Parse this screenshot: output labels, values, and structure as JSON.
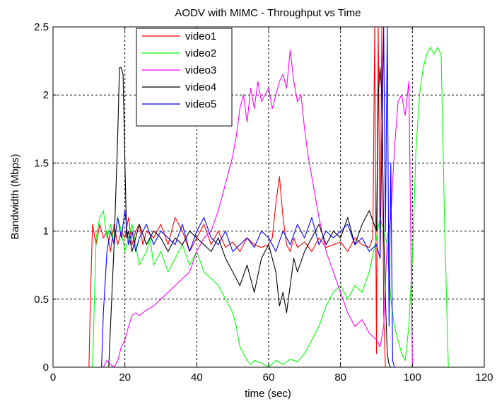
{
  "chart_data": {
    "type": "line",
    "title": "AODV with MIMC - Throughput vs Time",
    "xlabel": "time (sec)",
    "ylabel": "Bandwidth (Mbps)",
    "xlim": [
      0,
      120
    ],
    "ylim": [
      0,
      2.5
    ],
    "xticks": [
      "0",
      "20",
      "40",
      "60",
      "80",
      "100",
      "120"
    ],
    "yticks": [
      "0",
      "0.5",
      "1",
      "1.5",
      "2",
      "2.5"
    ],
    "grid": true,
    "legend_position": "top-left",
    "series": [
      {
        "name": "video1",
        "color": "#ff0000",
        "x": [
          0,
          10,
          10.5,
          11,
          12,
          13,
          14,
          15,
          16,
          17,
          18,
          19,
          20,
          21,
          22,
          23,
          24,
          25,
          26,
          28,
          30,
          32,
          34,
          36,
          38,
          40,
          42,
          44,
          46,
          48,
          50,
          52,
          54,
          56,
          58,
          60,
          61,
          62,
          63,
          64,
          65,
          66,
          67,
          68,
          70,
          72,
          74,
          76,
          78,
          80,
          82,
          84,
          86,
          88,
          89,
          89.5,
          90,
          90.5,
          91,
          91.5,
          92,
          92.5,
          93
        ],
        "y": [
          0,
          0,
          0.6,
          1.05,
          0.9,
          1.05,
          0.95,
          1.0,
          0.85,
          1.05,
          0.9,
          1.0,
          0.95,
          1.1,
          0.9,
          1.0,
          1.05,
          0.9,
          1.0,
          0.95,
          1.05,
          0.9,
          1.1,
          1.0,
          0.85,
          0.95,
          1.05,
          0.9,
          1.0,
          0.88,
          0.92,
          0.85,
          0.95,
          0.9,
          0.88,
          0.9,
          0.95,
          1.2,
          1.4,
          1.1,
          0.9,
          0.85,
          0.95,
          0.88,
          0.92,
          0.85,
          0.95,
          0.88,
          0.9,
          0.92,
          0.85,
          0.95,
          0.9,
          0.88,
          0.95,
          2.5,
          0.1,
          2.5,
          0.8,
          2.5,
          0.4,
          0.0,
          0
        ]
      },
      {
        "name": "video2",
        "color": "#00ff00",
        "x": [
          0,
          10,
          11,
          12,
          13,
          14,
          15,
          16,
          17,
          18,
          19,
          20,
          21,
          22,
          23,
          24,
          25,
          26,
          27,
          28,
          30,
          32,
          34,
          36,
          38,
          40,
          42,
          44,
          46,
          48,
          50,
          51,
          52,
          53,
          54,
          55,
          56,
          58,
          60,
          62,
          64,
          66,
          68,
          70,
          72,
          74,
          76,
          78,
          80,
          82,
          84,
          86,
          88,
          90,
          91,
          92,
          93,
          94,
          95,
          96,
          97,
          98,
          99,
          100,
          101,
          102,
          103,
          104,
          105,
          106,
          107,
          108,
          109,
          110,
          120
        ],
        "y": [
          0,
          0,
          0.0,
          0.95,
          1.1,
          1.15,
          0.95,
          1.05,
          0.9,
          1.1,
          1.0,
          0.85,
          0.95,
          1.05,
          0.9,
          0.75,
          0.8,
          0.85,
          0.95,
          0.75,
          0.85,
          0.7,
          0.8,
          0.9,
          0.75,
          0.85,
          0.7,
          0.65,
          0.6,
          0.5,
          0.4,
          0.3,
          0.15,
          0.1,
          0.05,
          0.02,
          0.05,
          0.03,
          0.0,
          0.05,
          0.02,
          0.06,
          0.04,
          0.1,
          0.2,
          0.3,
          0.45,
          0.55,
          0.6,
          0.5,
          0.6,
          0.55,
          0.7,
          0.95,
          1.1,
          1.0,
          0.9,
          0.5,
          0.3,
          0.2,
          0.1,
          0.05,
          0.3,
          0.8,
          1.6,
          2.0,
          2.2,
          2.3,
          2.35,
          2.3,
          2.35,
          2.3,
          1.0,
          0.0,
          0
        ]
      },
      {
        "name": "video3",
        "color": "#ff00ff",
        "x": [
          0,
          14,
          15,
          16,
          17,
          18,
          19,
          20,
          21,
          22,
          23,
          24,
          26,
          28,
          30,
          32,
          34,
          36,
          38,
          40,
          42,
          44,
          46,
          48,
          50,
          51,
          52,
          53,
          54,
          55,
          56,
          57,
          58,
          59,
          60,
          61,
          62,
          63,
          64,
          65,
          66,
          67,
          68,
          69,
          70,
          71,
          72,
          74,
          76,
          78,
          80,
          82,
          84,
          86,
          88,
          90,
          91,
          92,
          93,
          94,
          95,
          96,
          97,
          98,
          99,
          100,
          120
        ],
        "y": [
          0,
          0,
          0.05,
          0.02,
          0.0,
          0.05,
          0.15,
          0.2,
          0.3,
          0.38,
          0.4,
          0.38,
          0.42,
          0.45,
          0.5,
          0.55,
          0.6,
          0.65,
          0.7,
          0.85,
          0.95,
          1.0,
          1.15,
          1.35,
          1.55,
          1.7,
          1.9,
          2.0,
          1.8,
          2.05,
          1.9,
          2.1,
          1.95,
          2.0,
          2.05,
          1.9,
          2.0,
          2.1,
          2.15,
          2.05,
          2.33,
          2.1,
          1.95,
          2.0,
          1.75,
          1.55,
          1.4,
          1.1,
          0.85,
          0.7,
          0.55,
          0.4,
          0.3,
          0.35,
          0.25,
          0.2,
          0.15,
          0.3,
          0.95,
          1.1,
          1.6,
          1.95,
          2.0,
          1.85,
          2.1,
          0.0,
          0
        ]
      },
      {
        "name": "video4",
        "color": "#000000",
        "x": [
          0,
          15.5,
          16,
          17,
          18,
          18.5,
          19,
          19.5,
          20,
          20.5,
          21,
          22,
          23,
          24,
          26,
          28,
          30,
          32,
          34,
          36,
          38,
          40,
          42,
          44,
          46,
          48,
          50,
          52,
          54,
          56,
          58,
          60,
          62,
          63,
          64,
          65,
          66,
          67,
          68,
          70,
          72,
          74,
          76,
          78,
          80,
          82,
          84,
          86,
          88,
          90,
          90.5,
          91,
          91.5,
          92,
          92.5,
          93,
          93.5,
          94,
          120
        ],
        "y": [
          0,
          0,
          0.3,
          0.9,
          1.7,
          2.2,
          2.2,
          2.15,
          1.5,
          0.95,
          1.0,
          0.85,
          0.95,
          1.05,
          0.9,
          1.0,
          0.95,
          0.85,
          0.95,
          0.9,
          1.0,
          0.95,
          0.9,
          0.85,
          0.95,
          0.8,
          0.7,
          0.6,
          0.75,
          0.55,
          0.8,
          0.9,
          0.7,
          0.45,
          0.55,
          0.4,
          0.6,
          0.8,
          0.7,
          0.85,
          0.95,
          1.05,
          0.9,
          1.0,
          0.95,
          1.1,
          0.9,
          1.05,
          1.15,
          1.0,
          2.0,
          2.2,
          2.0,
          1.0,
          0.5,
          0.1,
          0.02,
          0.0,
          0
        ]
      },
      {
        "name": "video5",
        "color": "#0000ff",
        "x": [
          0,
          13.5,
          14,
          15,
          16,
          17,
          18,
          19,
          20,
          21,
          22,
          23,
          24,
          26,
          28,
          30,
          32,
          34,
          36,
          38,
          40,
          42,
          44,
          46,
          48,
          50,
          52,
          54,
          56,
          58,
          60,
          62,
          64,
          66,
          68,
          70,
          72,
          74,
          76,
          78,
          80,
          82,
          84,
          86,
          88,
          90,
          91,
          92,
          92.5,
          93,
          93.5,
          94,
          94.5,
          95,
          120
        ],
        "y": [
          0,
          0,
          0.4,
          0.85,
          1.0,
          0.9,
          1.1,
          0.95,
          1.15,
          0.9,
          1.0,
          0.85,
          0.95,
          1.05,
          0.9,
          1.0,
          0.95,
          0.9,
          1.05,
          0.85,
          1.0,
          1.1,
          0.95,
          0.9,
          1.0,
          0.85,
          0.9,
          0.95,
          0.88,
          1.0,
          0.95,
          0.85,
          1.0,
          0.9,
          1.05,
          0.95,
          1.1,
          0.9,
          1.0,
          0.95,
          1.0,
          1.05,
          0.9,
          0.95,
          0.85,
          0.9,
          0.8,
          2.5,
          1.0,
          2.5,
          0.3,
          1.5,
          0.05,
          0.0,
          0
        ]
      }
    ]
  }
}
